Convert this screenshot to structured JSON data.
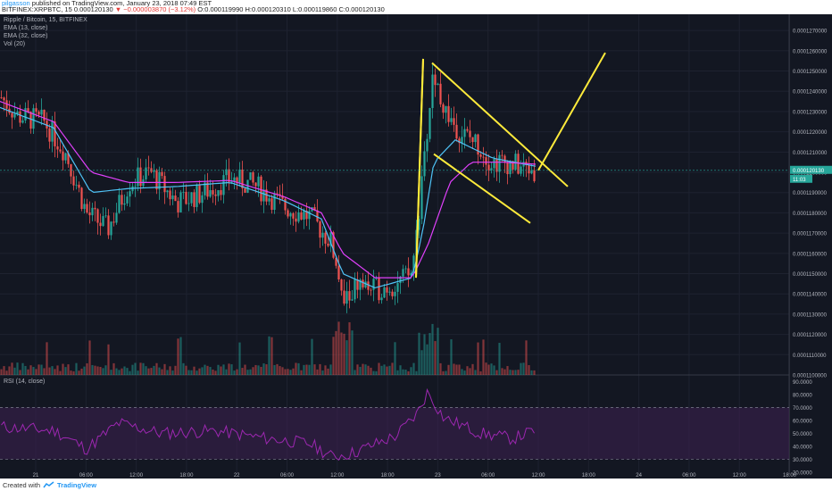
{
  "header": {
    "author": "pilgasson",
    "published_text": "published on TradingView.com, January 23, 2018 07:49 EST",
    "symbol": "BITFINEX:XRPBTC, 15",
    "last": "0.000120130",
    "change": "▼ −0.000003870 (−3.12%)",
    "ohlc": "O:0.000119990 H:0.000120310 L:0.000119860 C:0.000120130"
  },
  "legend": {
    "title": "Ripple / Bitcoin, 15, BITFINEX",
    "ema13": "EMA (13, close)",
    "ema32": "EMA (32, close)",
    "vol": "Vol (20)",
    "rsi": "RSI (14, close)"
  },
  "price_badges": {
    "price": "0.000120130",
    "timer": "11:03"
  },
  "footer": {
    "created": "Created with",
    "brand": "TradingView"
  },
  "colors": {
    "background": "#131722",
    "up": "#26a69a",
    "down": "#ef5350",
    "ema13": "#4fc3f7",
    "ema32": "#e040fb",
    "drawing": "#ffeb3b",
    "rsi_line": "#9c27b0",
    "rsi_band": "#3b1f4e"
  },
  "chart_data": {
    "type": "candlestick",
    "symbol": "XRPBTC",
    "price_axis": {
      "range": [
        0.00011,
        0.0001278
      ],
      "ticks": [
        "0.0001270000",
        "0.0001260000",
        "0.0001250000",
        "0.0001240000",
        "0.0001230000",
        "0.0001220000",
        "0.0001210000",
        "0.0001200000",
        "0.0001190000",
        "0.0001180000",
        "0.0001170000",
        "0.0001160000",
        "0.0001150000",
        "0.0001140000",
        "0.0001130000",
        "0.0001120000",
        "0.0001110000",
        "0.0001100000"
      ]
    },
    "rsi_axis": {
      "range": [
        18,
        95
      ],
      "ticks": [
        "90.0000",
        "80.0000",
        "70.0000",
        "60.0000",
        "50.0000",
        "40.0000",
        "30.0000",
        "20.0000"
      ],
      "upper_band": 70,
      "lower_band": 30
    },
    "time_axis": {
      "ticks": [
        "21",
        "06:00",
        "12:00",
        "18:00",
        "22",
        "06:00",
        "12:00",
        "18:00",
        "23",
        "06:00",
        "12:00",
        "18:00",
        "24",
        "06:00",
        "12:00",
        "18:00"
      ]
    },
    "price_keyframes": [
      [
        0,
        0.0001237
      ],
      [
        0.03,
        0.0001228
      ],
      [
        0.08,
        0.0001225
      ],
      [
        0.12,
        0.000121
      ],
      [
        0.16,
        0.000118
      ],
      [
        0.2,
        0.0001172
      ],
      [
        0.24,
        0.0001195
      ],
      [
        0.28,
        0.00012
      ],
      [
        0.33,
        0.0001185
      ],
      [
        0.38,
        0.000119
      ],
      [
        0.43,
        0.0001197
      ],
      [
        0.48,
        0.0001193
      ],
      [
        0.53,
        0.0001183
      ],
      [
        0.58,
        0.0001178
      ],
      [
        0.62,
        0.0001165
      ],
      [
        0.64,
        0.0001135
      ],
      [
        0.67,
        0.0001145
      ],
      [
        0.7,
        0.0001142
      ],
      [
        0.74,
        0.0001145
      ],
      [
        0.77,
        0.000115
      ],
      [
        0.79,
        0.0001195
      ],
      [
        0.81,
        0.000125
      ],
      [
        0.83,
        0.0001232
      ],
      [
        0.86,
        0.000122
      ],
      [
        0.89,
        0.0001215
      ],
      [
        0.92,
        0.0001205
      ],
      [
        0.95,
        0.0001205
      ],
      [
        0.98,
        0.0001202
      ],
      [
        1.0,
        0.0001201
      ]
    ],
    "ema13": [
      [
        0,
        0.0001232
      ],
      [
        0.1,
        0.0001222
      ],
      [
        0.17,
        0.000119
      ],
      [
        0.24,
        0.0001192
      ],
      [
        0.33,
        0.0001193
      ],
      [
        0.43,
        0.0001195
      ],
      [
        0.53,
        0.0001186
      ],
      [
        0.6,
        0.0001177
      ],
      [
        0.64,
        0.000115
      ],
      [
        0.7,
        0.0001143
      ],
      [
        0.77,
        0.0001148
      ],
      [
        0.79,
        0.0001172
      ],
      [
        0.81,
        0.0001205
      ],
      [
        0.85,
        0.0001216
      ],
      [
        0.92,
        0.0001207
      ],
      [
        1.0,
        0.0001203
      ]
    ],
    "ema32": [
      [
        0,
        0.0001235
      ],
      [
        0.1,
        0.0001225
      ],
      [
        0.17,
        0.00012
      ],
      [
        0.24,
        0.0001195
      ],
      [
        0.33,
        0.0001195
      ],
      [
        0.43,
        0.0001196
      ],
      [
        0.53,
        0.0001188
      ],
      [
        0.6,
        0.000118
      ],
      [
        0.64,
        0.000116
      ],
      [
        0.7,
        0.0001148
      ],
      [
        0.77,
        0.0001148
      ],
      [
        0.8,
        0.0001165
      ],
      [
        0.84,
        0.0001195
      ],
      [
        0.88,
        0.0001205
      ],
      [
        0.94,
        0.0001205
      ],
      [
        1.0,
        0.0001204
      ]
    ],
    "rsi_keyframes": [
      [
        0,
        55
      ],
      [
        0.1,
        52
      ],
      [
        0.16,
        38
      ],
      [
        0.22,
        58
      ],
      [
        0.3,
        50
      ],
      [
        0.4,
        52
      ],
      [
        0.5,
        46
      ],
      [
        0.58,
        42
      ],
      [
        0.62,
        32
      ],
      [
        0.66,
        35
      ],
      [
        0.74,
        48
      ],
      [
        0.78,
        65
      ],
      [
        0.8,
        82
      ],
      [
        0.83,
        62
      ],
      [
        0.9,
        50
      ],
      [
        0.96,
        46
      ],
      [
        1.0,
        52
      ]
    ],
    "drawings": [
      {
        "name": "pole",
        "points": [
          [
            0.0001148,
            "a"
          ],
          [
            0.0001254,
            "b"
          ]
        ]
      },
      {
        "name": "flag-upper",
        "from": [
          0.0001252,
          "b"
        ],
        "to": [
          0.0001194,
          "e"
        ]
      },
      {
        "name": "flag-lower",
        "from": [
          0.0001209,
          "c"
        ],
        "to": [
          0.0001175,
          "d"
        ]
      },
      {
        "name": "target",
        "from": [
          0.00012,
          "f"
        ],
        "to": [
          0.0001258,
          "g"
        ]
      }
    ]
  }
}
